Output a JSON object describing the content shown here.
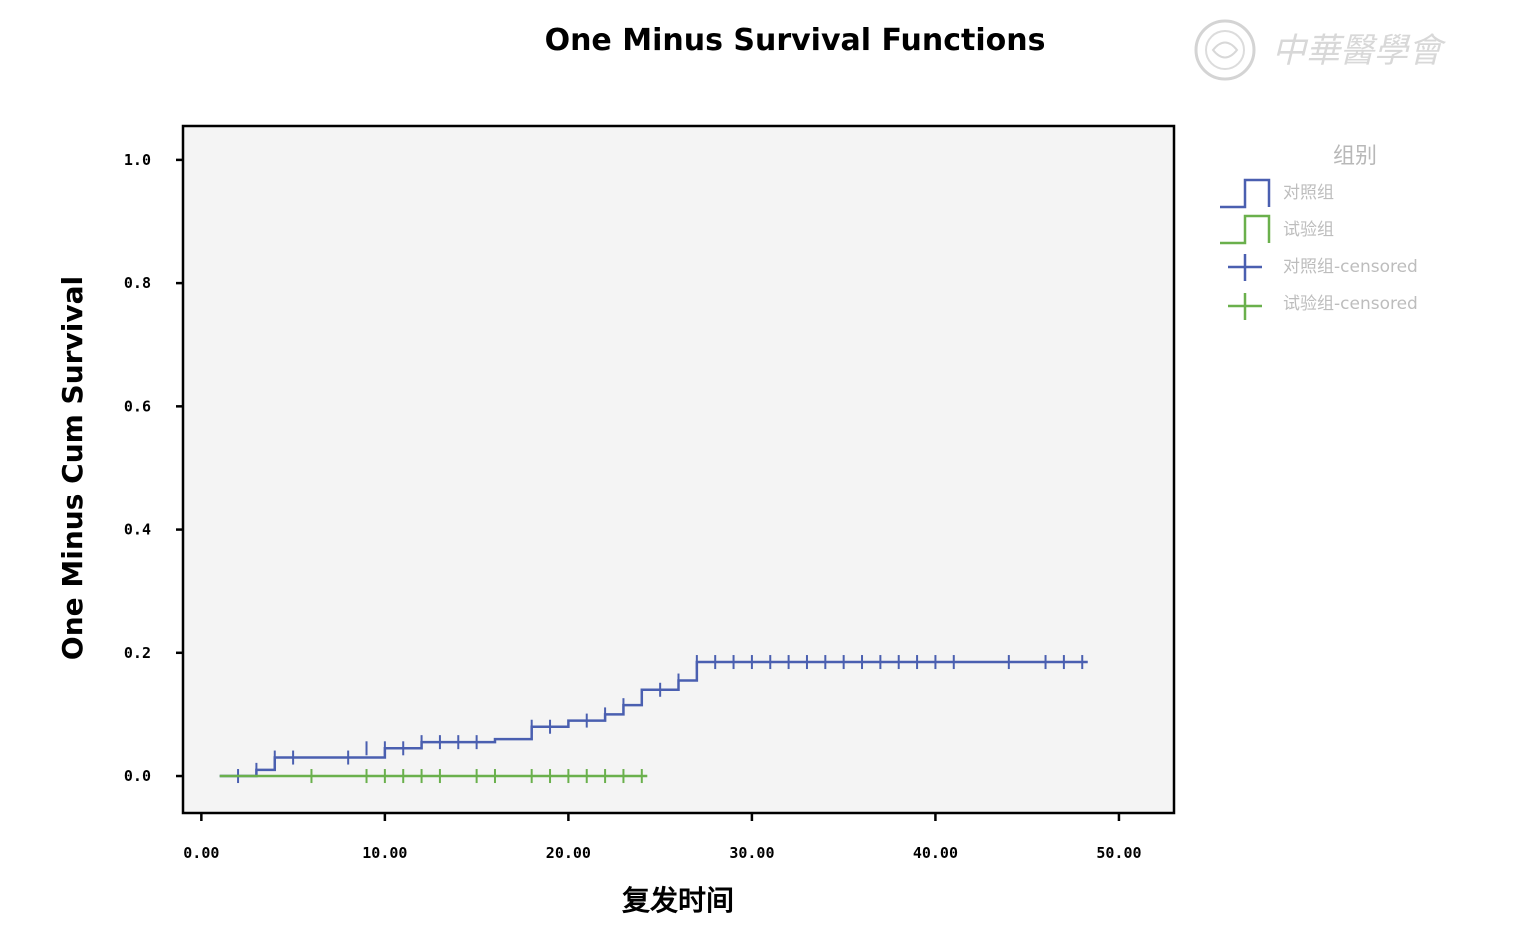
{
  "watermark": {
    "text": "中華醫學會"
  },
  "chart_data": {
    "type": "line",
    "title": "One Minus Survival Functions",
    "xlabel": "复发时间",
    "ylabel": "One Minus Cum Survival",
    "xlim": [
      -1,
      53
    ],
    "ylim": [
      -0.06,
      1.055
    ],
    "x_ticks": [
      0,
      10,
      20,
      30,
      40,
      50
    ],
    "x_tick_labels": [
      "0.00",
      "10.00",
      "20.00",
      "30.00",
      "40.00",
      "50.00"
    ],
    "y_ticks": [
      0.0,
      0.2,
      0.4,
      0.6,
      0.8,
      1.0
    ],
    "y_tick_labels": [
      "0.0",
      "0.2",
      "0.4",
      "0.6",
      "0.8",
      "1.0"
    ],
    "grid": false,
    "legend": {
      "title": "组别",
      "position": "right",
      "entries": [
        {
          "label": "对照组",
          "symbol": "step",
          "color": "#4a5fb0"
        },
        {
          "label": "试验组",
          "symbol": "step",
          "color": "#6ab04c"
        },
        {
          "label": "对照组-censored",
          "symbol": "plus",
          "color": "#4a5fb0"
        },
        {
          "label": "试验组-censored",
          "symbol": "plus",
          "color": "#6ab04c"
        }
      ]
    },
    "series": [
      {
        "name": "对照组",
        "color": "#4a5fb0",
        "steps": [
          [
            1,
            0.0
          ],
          [
            3,
            0.01
          ],
          [
            4,
            0.03
          ],
          [
            10,
            0.045
          ],
          [
            12,
            0.055
          ],
          [
            16,
            0.06
          ],
          [
            18,
            0.08
          ],
          [
            20,
            0.09
          ],
          [
            22,
            0.1
          ],
          [
            23,
            0.115
          ],
          [
            24,
            0.14
          ],
          [
            26,
            0.155
          ],
          [
            27,
            0.185
          ]
        ],
        "end_x": 48.3,
        "censored": [
          [
            2,
            0.0
          ],
          [
            3,
            0.01
          ],
          [
            4,
            0.03
          ],
          [
            5,
            0.03
          ],
          [
            8,
            0.03
          ],
          [
            9,
            0.045
          ],
          [
            10,
            0.045
          ],
          [
            11,
            0.045
          ],
          [
            12,
            0.055
          ],
          [
            13,
            0.055
          ],
          [
            14,
            0.055
          ],
          [
            15,
            0.055
          ],
          [
            18,
            0.08
          ],
          [
            19,
            0.08
          ],
          [
            21,
            0.09
          ],
          [
            22,
            0.1
          ],
          [
            23,
            0.115
          ],
          [
            25,
            0.14
          ],
          [
            26,
            0.155
          ],
          [
            27,
            0.185
          ],
          [
            28,
            0.185
          ],
          [
            29,
            0.185
          ],
          [
            30,
            0.185
          ],
          [
            31,
            0.185
          ],
          [
            32,
            0.185
          ],
          [
            33,
            0.185
          ],
          [
            34,
            0.185
          ],
          [
            35,
            0.185
          ],
          [
            36,
            0.185
          ],
          [
            37,
            0.185
          ],
          [
            38,
            0.185
          ],
          [
            39,
            0.185
          ],
          [
            40,
            0.185
          ],
          [
            41,
            0.185
          ],
          [
            44,
            0.185
          ],
          [
            46,
            0.185
          ],
          [
            47,
            0.185
          ],
          [
            48,
            0.185
          ]
        ]
      },
      {
        "name": "试验组",
        "color": "#6ab04c",
        "steps": [
          [
            1,
            0.0
          ]
        ],
        "end_x": 24.3,
        "censored": [
          [
            6,
            0.0
          ],
          [
            9,
            0.0
          ],
          [
            10,
            0.0
          ],
          [
            11,
            0.0
          ],
          [
            12,
            0.0
          ],
          [
            13,
            0.0
          ],
          [
            15,
            0.0
          ],
          [
            16,
            0.0
          ],
          [
            18,
            0.0
          ],
          [
            19,
            0.0
          ],
          [
            20,
            0.0
          ],
          [
            21,
            0.0
          ],
          [
            22,
            0.0
          ],
          [
            23,
            0.0
          ],
          [
            24,
            0.0
          ]
        ]
      }
    ]
  }
}
